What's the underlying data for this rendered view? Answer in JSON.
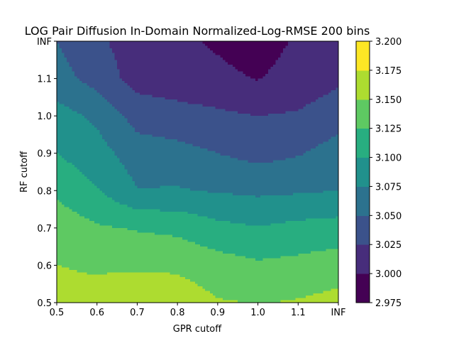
{
  "chart_data": {
    "type": "heatmap",
    "title": "LOG Pair Diffusion In-Domain Normalized-Log-RMSE 200 bins",
    "xlabel": "GPR cutoff",
    "ylabel": "RF cutoff",
    "x_tick_labels": [
      "0.5",
      "0.6",
      "0.7",
      "0.8",
      "0.9",
      "1.0",
      "1.1",
      "INF"
    ],
    "y_tick_labels": [
      "0.5",
      "0.6",
      "0.7",
      "0.8",
      "0.9",
      "1.0",
      "1.1",
      "INF"
    ],
    "z": [
      [
        3.159,
        3.158,
        3.176,
        3.166,
        3.152,
        3.149,
        3.152,
        3.158
      ],
      [
        3.15,
        3.147,
        3.145,
        3.145,
        3.136,
        3.129,
        3.132,
        3.138
      ],
      [
        3.14,
        3.128,
        3.123,
        3.119,
        3.107,
        3.101,
        3.107,
        3.11
      ],
      [
        3.12,
        3.102,
        3.076,
        3.077,
        3.073,
        3.07,
        3.072,
        3.075
      ],
      [
        3.1,
        3.085,
        3.062,
        3.058,
        3.05,
        3.042,
        3.048,
        3.06
      ],
      [
        3.085,
        3.07,
        3.04,
        3.035,
        3.03,
        3.025,
        3.028,
        3.04
      ],
      [
        3.06,
        3.04,
        3.015,
        3.01,
        3.005,
        2.999,
        3.009,
        3.02
      ],
      [
        3.05,
        3.03,
        3.012,
        3.005,
        2.997,
        2.99,
        3.003,
        3.01
      ]
    ],
    "colorbar": {
      "levels": [
        2.975,
        3.0,
        3.025,
        3.05,
        3.075,
        3.1,
        3.125,
        3.15,
        3.175,
        3.2
      ],
      "tick_labels": [
        "2.975",
        "3.000",
        "3.025",
        "3.050",
        "3.075",
        "3.100",
        "3.125",
        "3.150",
        "3.175",
        "3.200"
      ],
      "colors": [
        "#440154",
        "#472d7b",
        "#3b528b",
        "#2c728e",
        "#21918c",
        "#28ae80",
        "#5ec962",
        "#addc30",
        "#fde725"
      ]
    }
  }
}
